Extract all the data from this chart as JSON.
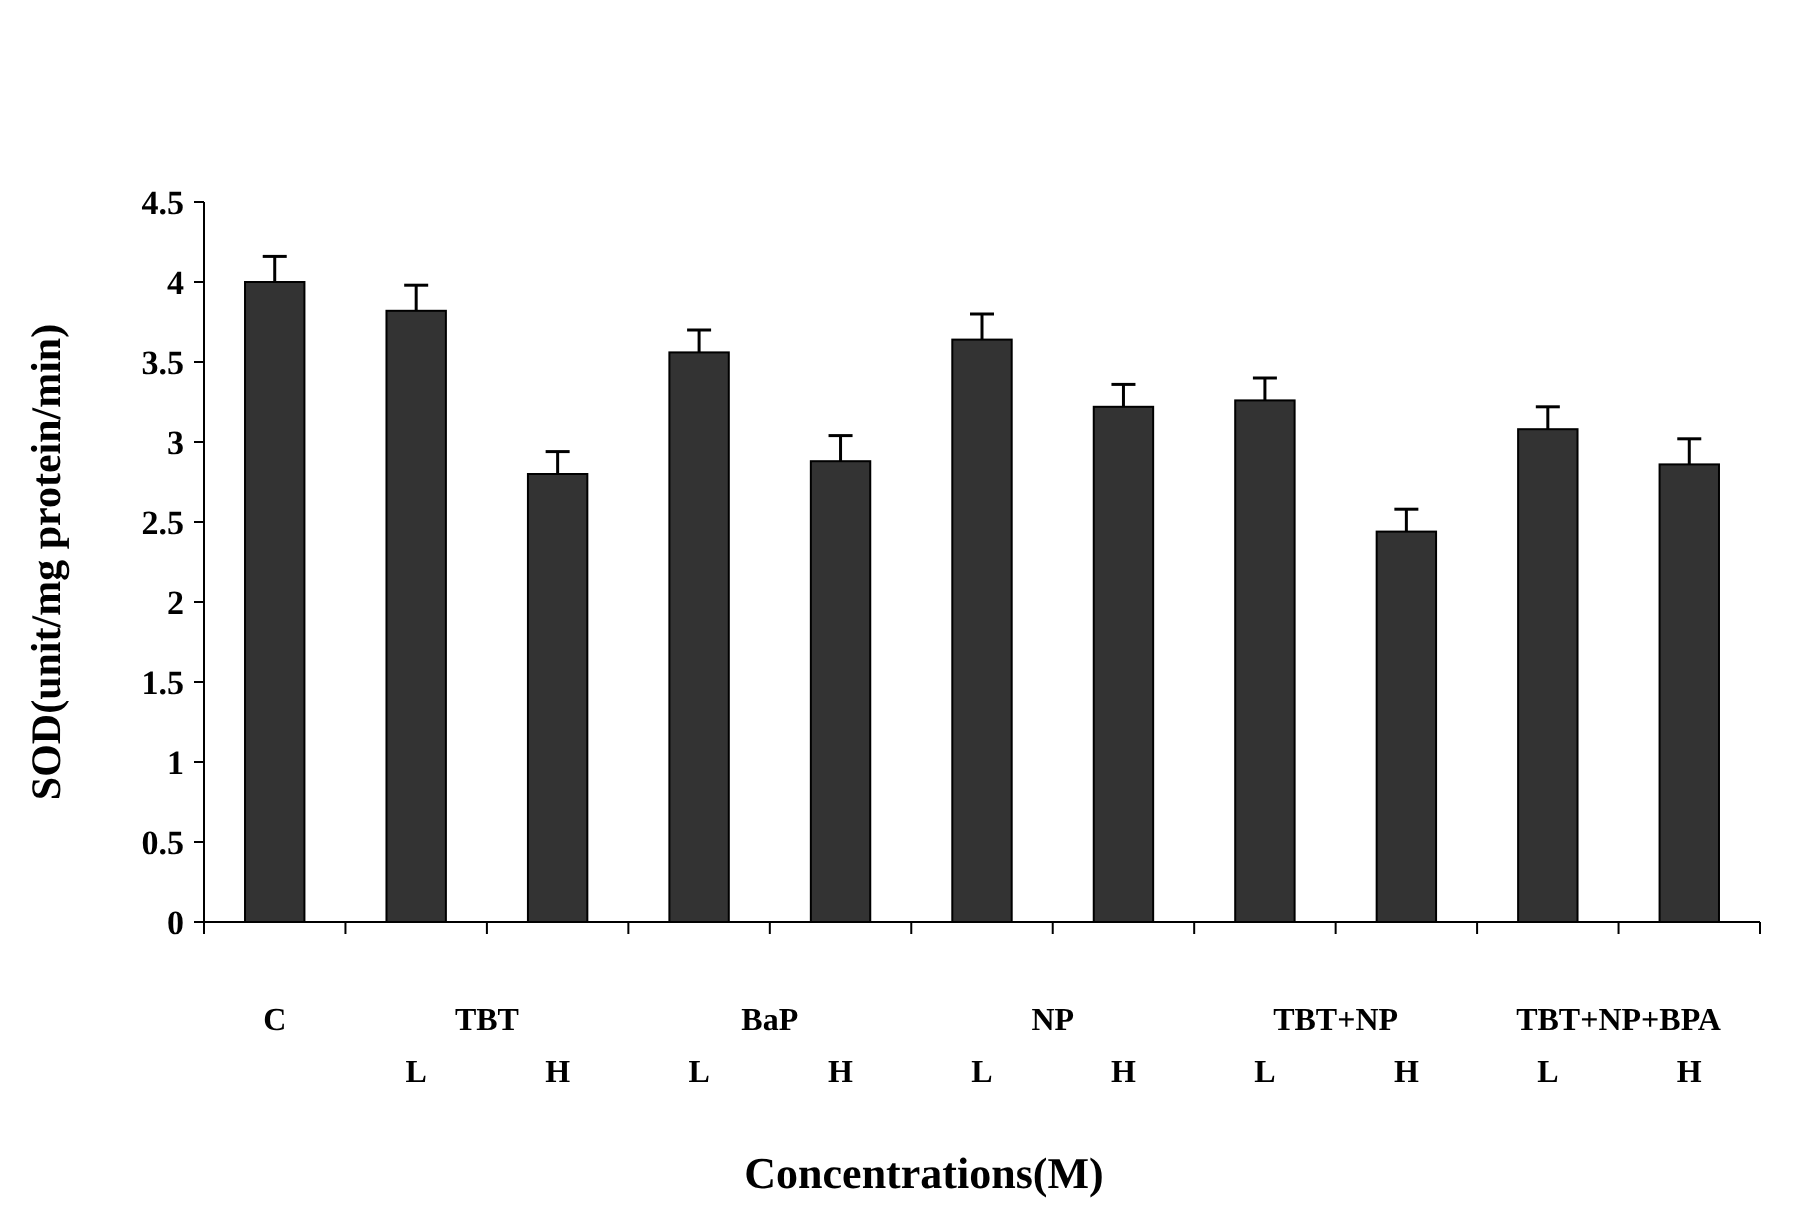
{
  "chart_data": {
    "type": "bar",
    "categories": [
      null,
      "L",
      "H",
      "L",
      "H",
      "L",
      "H",
      "L",
      "H",
      "L",
      "H"
    ],
    "values": [
      4.0,
      3.82,
      2.8,
      3.56,
      2.88,
      3.64,
      3.22,
      3.26,
      2.44,
      3.08,
      2.86
    ],
    "errors": [
      0.16,
      0.16,
      0.14,
      0.14,
      0.16,
      0.16,
      0.14,
      0.14,
      0.14,
      0.14,
      0.16
    ],
    "color": "#333333",
    "xlabel": "Concentrations(M)",
    "ylabel": "SOD(unit/mg protein/min)",
    "annotations": [
      "C",
      "TBT",
      "BaP",
      "NP",
      "TBT+NP",
      "TBT+NP+BPA"
    ],
    "ylim": [
      0,
      4.5
    ],
    "yticks": [
      0,
      0.5,
      1,
      1.5,
      2,
      2.5,
      3,
      3.5,
      4,
      4.5
    ],
    "grid": false
  }
}
